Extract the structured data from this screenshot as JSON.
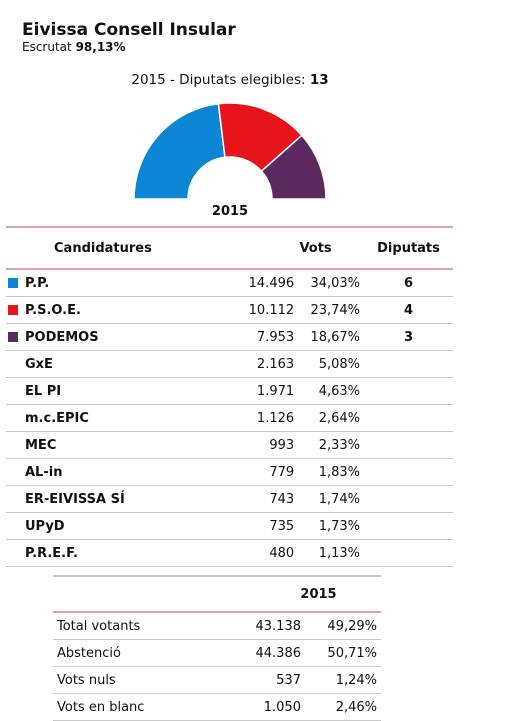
{
  "header": {
    "title": "Eivissa Consell Insular",
    "escrutat_label": "Escrutat",
    "escrutat_value": "98,13%"
  },
  "eligible": {
    "label": "2015 - Diputats elegibles:",
    "value": "13"
  },
  "chart_data": {
    "type": "pie",
    "title": "",
    "xlabel": "",
    "ylabel": "",
    "categories": [
      "P.P.",
      "P.S.O.E.",
      "PODEMOS"
    ],
    "values": [
      6,
      4,
      3
    ],
    "colors": [
      "#0a86d4",
      "#e8141c",
      "#5b2960"
    ],
    "total": 13
  },
  "chart_year": "2015",
  "colors": {
    "pp": "#0a86d4",
    "psoe": "#e8141c",
    "podemos": "#5b2960",
    "divider": "#e8a0a0"
  },
  "table": {
    "headers": {
      "candidatures": "Candidatures",
      "vots": "Vots",
      "diputats": "Diputats"
    },
    "rows": [
      {
        "name": "P.P.",
        "votes": "14.496",
        "pct": "34,03%",
        "seats": "6",
        "color": "#0a86d4"
      },
      {
        "name": "P.S.O.E.",
        "votes": "10.112",
        "pct": "23,74%",
        "seats": "4",
        "color": "#e8141c"
      },
      {
        "name": "PODEMOS",
        "votes": "7.953",
        "pct": "18,67%",
        "seats": "3",
        "color": "#5b2960"
      },
      {
        "name": "GxE",
        "votes": "2.163",
        "pct": "5,08%",
        "seats": ""
      },
      {
        "name": "EL PI",
        "votes": "1.971",
        "pct": "4,63%",
        "seats": ""
      },
      {
        "name": "m.c.EPIC",
        "votes": "1.126",
        "pct": "2,64%",
        "seats": ""
      },
      {
        "name": "MEC",
        "votes": "993",
        "pct": "2,33%",
        "seats": ""
      },
      {
        "name": "AL-in",
        "votes": "779",
        "pct": "1,83%",
        "seats": ""
      },
      {
        "name": "ER-EIVISSA SÍ",
        "votes": "743",
        "pct": "1,74%",
        "seats": ""
      },
      {
        "name": "UPyD",
        "votes": "735",
        "pct": "1,73%",
        "seats": ""
      },
      {
        "name": "P.R.E.F.",
        "votes": "480",
        "pct": "1,13%",
        "seats": ""
      }
    ]
  },
  "summary": {
    "year": "2015",
    "rows": [
      {
        "label": "Total votants",
        "votes": "43.138",
        "pct": "49,29%"
      },
      {
        "label": "Abstenció",
        "votes": "44.386",
        "pct": "50,71%"
      },
      {
        "label": "Vots nuls",
        "votes": "537",
        "pct": "1,24%"
      },
      {
        "label": "Vots en blanc",
        "votes": "1.050",
        "pct": "2,46%"
      }
    ]
  }
}
